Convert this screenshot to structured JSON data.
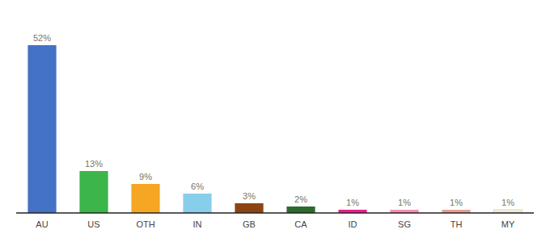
{
  "chart_data": {
    "type": "bar",
    "categories": [
      "AU",
      "US",
      "OTH",
      "IN",
      "GB",
      "CA",
      "ID",
      "SG",
      "TH",
      "MY"
    ],
    "values": [
      52,
      13,
      9,
      6,
      3,
      2,
      1,
      1,
      1,
      1
    ],
    "value_labels": [
      "52%",
      "13%",
      "9%",
      "6%",
      "3%",
      "2%",
      "1%",
      "1%",
      "1%",
      "1%"
    ],
    "colors": [
      "#4472c4",
      "#3cb54a",
      "#f5a623",
      "#87ceeb",
      "#8b4513",
      "#2d6a2d",
      "#e91e8c",
      "#f48fb1",
      "#e8a090",
      "#f5f0d0"
    ],
    "ylim": [
      0,
      60
    ],
    "data_labels": true,
    "tick_labels": "x",
    "grid": false
  }
}
